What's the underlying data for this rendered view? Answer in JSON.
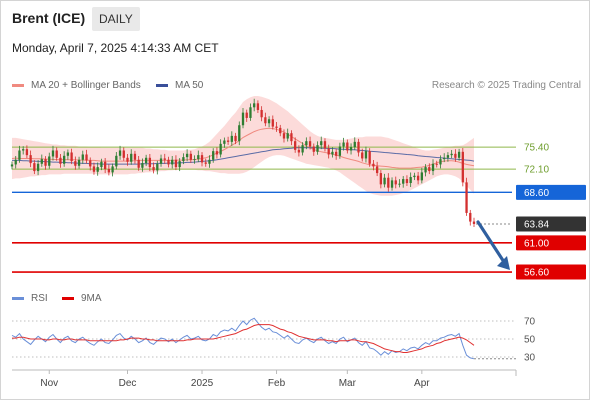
{
  "header": {
    "instrument": "Brent (ICE)",
    "timeframe": "DAILY",
    "timestamp": "Monday, April 7, 2025 4:14:33 AM CET"
  },
  "legend": {
    "ma20_label": "MA 20 + Bollinger Bands",
    "ma50_label": "MA 50",
    "source": "Research © 2025 Trading Central",
    "rsi_label": "RSI",
    "rsi_ma_label": "9MA"
  },
  "colors": {
    "up_candle": "#2e7d32",
    "down_candle": "#d32f2f",
    "bollinger_fill": "#fbd5d3",
    "ma20": "#f08a80",
    "ma50": "#5a6ba6",
    "pivot_line": "#1565d8",
    "target_line": "#e00000",
    "green_level": "#8fb84a",
    "arrow": "#2f5f9f",
    "rsi": "#6a8fd8",
    "rsi_ma": "#e03030"
  },
  "chart_data": [
    {
      "type": "candlestick",
      "title": "Brent (ICE)",
      "timeframe": "daily",
      "x_labels": [
        "Nov",
        "Dec",
        "2025",
        "Feb",
        "Mar",
        "Apr"
      ],
      "ylim": [
        54.5,
        82.5
      ],
      "last_price": 63.84,
      "levels": [
        {
          "value": 75.4,
          "label": "75.40",
          "kind": "resistance"
        },
        {
          "value": 72.1,
          "label": "72.10",
          "kind": "resistance"
        },
        {
          "value": 68.6,
          "label": "68.60",
          "kind": "pivot"
        },
        {
          "value": 63.84,
          "label": "63.84",
          "kind": "last"
        },
        {
          "value": 61.0,
          "label": "61.00",
          "kind": "target"
        },
        {
          "value": 56.6,
          "label": "56.60",
          "kind": "target"
        }
      ],
      "close": [
        72.8,
        73.5,
        74.9,
        75.1,
        74.2,
        73.0,
        71.8,
        72.9,
        73.6,
        72.6,
        74.0,
        74.9,
        73.8,
        72.9,
        74.1,
        74.6,
        73.3,
        72.6,
        73.5,
        74.3,
        73.4,
        72.5,
        71.7,
        72.4,
        73.2,
        72.1,
        71.6,
        72.5,
        74.1,
        74.9,
        73.8,
        73.2,
        74.4,
        73.5,
        72.3,
        73.0,
        73.8,
        72.4,
        71.9,
        72.9,
        73.7,
        73.5,
        72.8,
        73.5,
        72.4,
        73.3,
        73.9,
        74.4,
        73.5,
        73.6,
        74.2,
        73.1,
        72.9,
        73.5,
        74.8,
        74.3,
        75.9,
        76.4,
        76.2,
        77.1,
        76.3,
        78.7,
        80.6,
        79.8,
        81.4,
        82.0,
        81.0,
        79.9,
        79.0,
        79.6,
        78.5,
        78.3,
        77.5,
        76.7,
        77.5,
        76.3,
        75.0,
        74.6,
        75.7,
        76.3,
        75.5,
        74.7,
        75.7,
        76.3,
        75.2,
        74.3,
        74.7,
        74.1,
        75.5,
        76.1,
        74.9,
        75.4,
        76.2,
        74.6,
        73.7,
        74.8,
        72.9,
        72.5,
        71.5,
        69.8,
        70.8,
        69.3,
        70.4,
        69.8,
        69.9,
        70.6,
        70.0,
        70.9,
        71.1,
        70.4,
        71.6,
        72.4,
        71.8,
        72.9,
        72.8,
        73.6,
        73.8,
        74.2,
        74.4,
        73.8,
        74.7,
        70.1,
        65.5,
        64.2,
        63.84
      ],
      "bollinger_upper": [
        76.8,
        76.8,
        76.7,
        76.6,
        76.5,
        76.4,
        76.3,
        76.2,
        76.1,
        76.0,
        75.9,
        75.8,
        75.8,
        75.7,
        75.7,
        75.6,
        75.6,
        75.6,
        75.5,
        75.5,
        75.5,
        75.4,
        75.4,
        75.4,
        75.3,
        75.3,
        75.3,
        75.3,
        75.3,
        75.3,
        75.3,
        75.3,
        75.3,
        75.3,
        75.3,
        75.3,
        75.2,
        75.2,
        75.1,
        75.1,
        75.0,
        75.0,
        74.9,
        74.9,
        74.9,
        74.9,
        74.9,
        75.0,
        75.0,
        75.1,
        75.3,
        75.5,
        75.8,
        76.2,
        76.8,
        77.4,
        78.0,
        78.6,
        79.3,
        80.0,
        80.6,
        81.4,
        82.2,
        82.6,
        82.9,
        83.1,
        83.1,
        83.0,
        82.8,
        82.6,
        82.3,
        82.0,
        81.6,
        81.2,
        80.8,
        80.3,
        79.8,
        79.3,
        78.8,
        78.3,
        77.8,
        77.4,
        77.1,
        76.9,
        76.8,
        76.7,
        76.6,
        76.5,
        76.5,
        76.5,
        76.6,
        76.7,
        76.8,
        76.9,
        76.9,
        77.0,
        77.0,
        77.0,
        77.0,
        77.0,
        76.9,
        76.8,
        76.6,
        76.4,
        76.2,
        76.0,
        75.8,
        75.6,
        75.4,
        75.2,
        75.0,
        74.9,
        74.9,
        75.0,
        75.1,
        75.2,
        75.3,
        75.4,
        75.5,
        75.6,
        75.6,
        75.7,
        76.0,
        76.4,
        76.8
      ],
      "bollinger_lower": [
        70.6,
        70.7,
        70.7,
        70.8,
        70.9,
        71.0,
        71.0,
        71.1,
        71.2,
        71.2,
        71.3,
        71.3,
        71.3,
        71.3,
        71.4,
        71.4,
        71.4,
        71.4,
        71.4,
        71.4,
        71.4,
        71.4,
        71.4,
        71.3,
        71.3,
        71.3,
        71.3,
        71.3,
        71.3,
        71.3,
        71.3,
        71.3,
        71.4,
        71.4,
        71.5,
        71.5,
        71.6,
        71.6,
        71.7,
        71.7,
        71.8,
        71.8,
        71.9,
        71.9,
        72.0,
        72.0,
        72.0,
        72.0,
        72.0,
        72.0,
        71.9,
        71.9,
        71.8,
        71.8,
        71.7,
        71.6,
        71.5,
        71.5,
        71.4,
        71.4,
        71.4,
        71.4,
        71.5,
        71.7,
        72.0,
        72.4,
        72.8,
        73.2,
        73.6,
        73.9,
        74.1,
        74.2,
        74.2,
        74.1,
        73.9,
        73.7,
        73.5,
        73.3,
        73.1,
        72.9,
        72.8,
        72.7,
        72.6,
        72.5,
        72.4,
        72.3,
        72.1,
        71.9,
        71.6,
        71.2,
        70.8,
        70.4,
        70.0,
        69.6,
        69.2,
        68.8,
        68.5,
        68.3,
        68.2,
        68.1,
        68.1,
        68.1,
        68.1,
        68.2,
        68.3,
        68.5,
        68.7,
        68.9,
        69.2,
        69.5,
        69.8,
        70.1,
        70.4,
        70.7,
        71.0,
        71.2,
        71.3,
        71.3,
        71.2,
        71.0,
        70.7,
        70.2,
        69.6,
        69.0,
        68.4
      ],
      "ma20": [
        73.7,
        73.75,
        73.7,
        73.7,
        73.7,
        73.7,
        73.65,
        73.65,
        73.65,
        73.6,
        73.6,
        73.55,
        73.55,
        73.5,
        73.55,
        73.5,
        73.5,
        73.5,
        73.45,
        73.45,
        73.45,
        73.4,
        73.4,
        73.35,
        73.3,
        73.3,
        73.3,
        73.3,
        73.3,
        73.3,
        73.3,
        73.3,
        73.35,
        73.35,
        73.4,
        73.4,
        73.4,
        73.4,
        73.4,
        73.4,
        73.4,
        73.4,
        73.4,
        73.4,
        73.45,
        73.45,
        73.45,
        73.5,
        73.5,
        73.55,
        73.6,
        73.7,
        73.8,
        74.0,
        74.25,
        74.5,
        74.75,
        75.05,
        75.35,
        75.7,
        76.0,
        76.4,
        76.85,
        77.15,
        77.45,
        77.75,
        77.95,
        78.1,
        78.2,
        78.25,
        78.2,
        78.1,
        77.9,
        77.65,
        77.35,
        77.0,
        76.65,
        76.3,
        75.95,
        75.6,
        75.3,
        75.05,
        74.85,
        74.7,
        74.6,
        74.5,
        74.35,
        74.2,
        74.05,
        73.85,
        73.7,
        73.55,
        73.4,
        73.25,
        73.05,
        72.9,
        72.75,
        72.65,
        72.6,
        72.55,
        72.5,
        72.45,
        72.35,
        72.3,
        72.25,
        72.25,
        72.25,
        72.25,
        72.3,
        72.35,
        72.4,
        72.5,
        72.65,
        72.85,
        73.05,
        73.2,
        73.3,
        73.35,
        73.35,
        73.3,
        73.15,
        72.95,
        72.8,
        72.7,
        72.6
      ],
      "ma50": [
        73.4,
        73.4,
        73.4,
        73.35,
        73.35,
        73.3,
        73.3,
        73.25,
        73.25,
        73.2,
        73.2,
        73.15,
        73.15,
        73.1,
        73.1,
        73.05,
        73.05,
        73.0,
        73.0,
        72.95,
        72.95,
        72.9,
        72.9,
        72.9,
        72.85,
        72.85,
        72.85,
        72.85,
        72.85,
        72.85,
        72.85,
        72.85,
        72.85,
        72.85,
        72.85,
        72.9,
        72.9,
        72.9,
        72.9,
        72.95,
        72.95,
        72.95,
        73.0,
        73.0,
        73.0,
        73.05,
        73.05,
        73.1,
        73.1,
        73.15,
        73.2,
        73.25,
        73.3,
        73.35,
        73.4,
        73.5,
        73.6,
        73.7,
        73.8,
        73.9,
        74.0,
        74.1,
        74.2,
        74.3,
        74.4,
        74.5,
        74.6,
        74.7,
        74.8,
        74.9,
        75.0,
        75.05,
        75.1,
        75.15,
        75.2,
        75.25,
        75.3,
        75.3,
        75.3,
        75.3,
        75.3,
        75.3,
        75.3,
        75.25,
        75.25,
        75.2,
        75.2,
        75.15,
        75.1,
        75.1,
        75.05,
        75.0,
        75.0,
        74.95,
        74.9,
        74.85,
        74.8,
        74.75,
        74.7,
        74.65,
        74.6,
        74.55,
        74.5,
        74.45,
        74.4,
        74.35,
        74.3,
        74.25,
        74.2,
        74.1,
        74.05,
        74.0,
        73.95,
        73.9,
        73.85,
        73.8,
        73.75,
        73.7,
        73.65,
        73.6,
        73.55,
        73.5,
        73.45,
        73.4,
        73.3
      ]
    },
    {
      "type": "line",
      "title": "RSI",
      "ylim": [
        20,
        80
      ],
      "y_ticks": [
        70,
        50,
        30
      ],
      "series": [
        {
          "name": "RSI",
          "values": [
            54,
            52,
            56,
            50,
            47,
            44,
            49,
            53,
            50,
            47,
            52,
            55,
            50,
            46,
            51,
            53,
            48,
            46,
            50,
            52,
            48,
            45,
            43,
            47,
            50,
            46,
            45,
            49,
            54,
            56,
            51,
            49,
            53,
            50,
            46,
            48,
            51,
            46,
            44,
            48,
            51,
            50,
            47,
            50,
            46,
            49,
            52,
            54,
            50,
            51,
            53,
            49,
            48,
            50,
            55,
            53,
            58,
            60,
            59,
            62,
            59,
            65,
            70,
            66,
            71,
            73,
            68,
            63,
            60,
            62,
            58,
            57,
            54,
            51,
            54,
            50,
            46,
            45,
            49,
            51,
            48,
            46,
            50,
            52,
            48,
            45,
            47,
            45,
            50,
            52,
            47,
            49,
            51,
            46,
            43,
            47,
            40,
            39,
            36,
            32,
            36,
            33,
            37,
            35,
            36,
            39,
            37,
            40,
            41,
            39,
            43,
            46,
            44,
            48,
            48,
            51,
            52,
            54,
            55,
            53,
            56,
            43,
            32,
            29,
            28
          ]
        },
        {
          "name": "9MA",
          "values": [
            51,
            51,
            52,
            52,
            51,
            50,
            50,
            50,
            50,
            49,
            49,
            50,
            50,
            49,
            49,
            50,
            50,
            49,
            49,
            49,
            49,
            48,
            48,
            48,
            48,
            48,
            48,
            48,
            48,
            49,
            49,
            50,
            51,
            51,
            51,
            50,
            50,
            49,
            49,
            48,
            48,
            48,
            48,
            48,
            48,
            48,
            48,
            49,
            49,
            50,
            50,
            50,
            50,
            50,
            50,
            51,
            52,
            53,
            54,
            55,
            56,
            58,
            60,
            61,
            63,
            65,
            66,
            66,
            66,
            66,
            65,
            63,
            61,
            60,
            58,
            57,
            55,
            53,
            52,
            51,
            50,
            49,
            49,
            49,
            49,
            48,
            48,
            47,
            48,
            48,
            48,
            49,
            49,
            48,
            47,
            47,
            46,
            45,
            43,
            41,
            39,
            38,
            37,
            36,
            36,
            35,
            35,
            36,
            37,
            38,
            39,
            41,
            42,
            43,
            45,
            46,
            48,
            49,
            50,
            51,
            52,
            51,
            49,
            46,
            43
          ]
        }
      ]
    }
  ]
}
